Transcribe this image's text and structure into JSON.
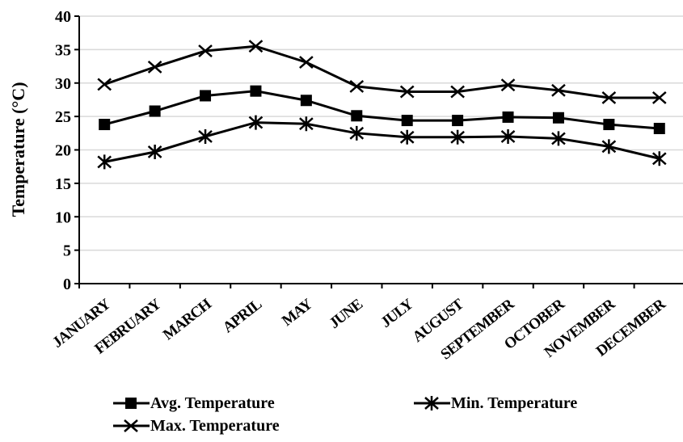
{
  "chart_data": {
    "type": "line",
    "title": "",
    "xlabel": "",
    "ylabel": "Temperature  (°C)",
    "ylim": [
      0,
      40
    ],
    "yticks": [
      0,
      5,
      10,
      15,
      20,
      25,
      30,
      35,
      40
    ],
    "grid": true,
    "legend_position": "bottom",
    "categories": [
      "JANUARY",
      "FEBRUARY",
      "MARCH",
      "APRIL",
      "MAY",
      "JUNE",
      "JULY",
      "AUGUST",
      "SEPTEMBER",
      "OCTOBER",
      "NOVEMBER",
      "DECEMBER"
    ],
    "series": [
      {
        "name": "Avg. Temperature",
        "marker": "square",
        "values": [
          23.8,
          25.8,
          28.1,
          28.8,
          27.4,
          25.1,
          24.4,
          24.4,
          24.9,
          24.8,
          23.8,
          23.2
        ]
      },
      {
        "name": "Min. Temperature",
        "marker": "asterisk",
        "values": [
          18.2,
          19.7,
          22.0,
          24.1,
          23.9,
          22.5,
          21.9,
          21.9,
          22.0,
          21.7,
          20.5,
          18.7
        ]
      },
      {
        "name": "Max. Temperature",
        "marker": "x",
        "values": [
          29.8,
          32.4,
          34.8,
          35.5,
          33.1,
          29.5,
          28.7,
          28.7,
          29.7,
          28.9,
          27.8,
          27.8
        ]
      }
    ],
    "colors": {
      "line": "#000000",
      "grid": "#d9d9d9",
      "background": "#ffffff"
    }
  }
}
